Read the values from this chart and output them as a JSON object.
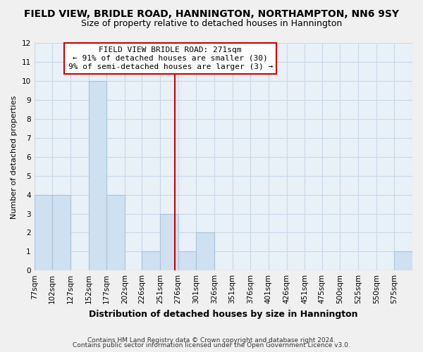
{
  "title": "FIELD VIEW, BRIDLE ROAD, HANNINGTON, NORTHAMPTON, NN6 9SY",
  "subtitle": "Size of property relative to detached houses in Hannington",
  "xlabel": "Distribution of detached houses by size in Hannington",
  "ylabel": "Number of detached properties",
  "bar_edges": [
    77,
    102,
    127,
    152,
    177,
    202,
    226,
    251,
    276,
    301,
    326,
    351,
    376,
    401,
    426,
    451,
    475,
    500,
    525,
    550,
    575,
    600
  ],
  "bar_heights": [
    4,
    4,
    0,
    10,
    4,
    0,
    1,
    3,
    1,
    2,
    0,
    0,
    0,
    0,
    0,
    0,
    0,
    0,
    0,
    0,
    1
  ],
  "bar_color": "#cfe0f0",
  "bar_edge_color": "#a8c4dc",
  "vline_x": 271,
  "vline_color": "#cc0000",
  "ylim": [
    0,
    12
  ],
  "yticks": [
    0,
    1,
    2,
    3,
    4,
    5,
    6,
    7,
    8,
    9,
    10,
    11,
    12
  ],
  "xtick_labels": [
    "77sqm",
    "102sqm",
    "127sqm",
    "152sqm",
    "177sqm",
    "202sqm",
    "226sqm",
    "251sqm",
    "276sqm",
    "301sqm",
    "326sqm",
    "351sqm",
    "376sqm",
    "401sqm",
    "426sqm",
    "451sqm",
    "475sqm",
    "500sqm",
    "525sqm",
    "550sqm",
    "575sqm"
  ],
  "annotation_title": "FIELD VIEW BRIDLE ROAD: 271sqm",
  "annotation_line1": "← 91% of detached houses are smaller (30)",
  "annotation_line2": "9% of semi-detached houses are larger (3) →",
  "annotation_box_facecolor": "#ffffff",
  "annotation_box_edgecolor": "#cc0000",
  "grid_color": "#c8d8e8",
  "plot_bg_color": "#e8f0f8",
  "fig_bg_color": "#f0f0f0",
  "footer1": "Contains HM Land Registry data © Crown copyright and database right 2024.",
  "footer2": "Contains public sector information licensed under the Open Government Licence v3.0.",
  "title_fontsize": 10,
  "subtitle_fontsize": 9,
  "ylabel_fontsize": 8,
  "xlabel_fontsize": 9,
  "tick_fontsize": 7.5,
  "annotation_fontsize": 8,
  "footer_fontsize": 6.5
}
